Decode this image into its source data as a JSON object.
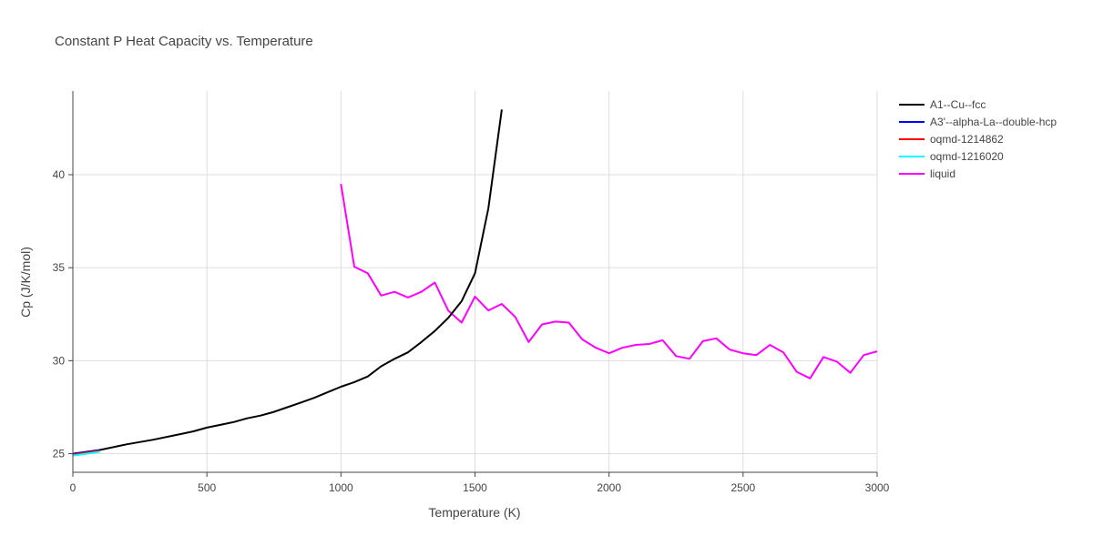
{
  "chart_data": {
    "type": "line",
    "title": "Constant P Heat Capacity vs. Temperature",
    "xlabel": "Temperature (K)",
    "ylabel": "Cp (J/K/mol)",
    "xlim": [
      0,
      3000
    ],
    "ylim": [
      24,
      44.5
    ],
    "xticks": [
      0,
      500,
      1000,
      1500,
      2000,
      2500,
      3000
    ],
    "yticks": [
      25,
      30,
      35,
      40
    ],
    "grid": true,
    "legend_position": "top-right",
    "series": [
      {
        "name": "A1--Cu--fcc",
        "color": "#000000",
        "x": [
          0,
          100,
          200,
          300,
          400,
          450,
          500,
          550,
          600,
          650,
          700,
          750,
          800,
          850,
          900,
          950,
          1000,
          1050,
          1100,
          1150,
          1200,
          1250,
          1300,
          1350,
          1400,
          1450,
          1500,
          1550,
          1600
        ],
        "y": [
          25.0,
          25.2,
          25.5,
          25.75,
          26.05,
          26.2,
          26.4,
          26.55,
          26.7,
          26.9,
          27.05,
          27.25,
          27.5,
          27.75,
          28.0,
          28.3,
          28.6,
          28.85,
          29.15,
          29.7,
          30.1,
          30.45,
          31.0,
          31.6,
          32.3,
          33.2,
          34.7,
          38.2,
          43.5
        ]
      },
      {
        "name": "A3'--alpha-La--double-hcp",
        "color": "#0000ff",
        "x": [
          0,
          50,
          100
        ],
        "y": [
          25.0,
          25.08,
          25.18
        ]
      },
      {
        "name": "oqmd-1214862",
        "color": "#ff0000",
        "x": [
          0,
          50,
          100
        ],
        "y": [
          24.95,
          25.05,
          25.15
        ]
      },
      {
        "name": "oqmd-1216020",
        "color": "#00ffff",
        "x": [
          0,
          50,
          100
        ],
        "y": [
          24.9,
          25.0,
          25.1
        ]
      },
      {
        "name": "liquid",
        "color": "#ff00ff",
        "x": [
          1000,
          1050,
          1100,
          1150,
          1200,
          1250,
          1300,
          1350,
          1400,
          1450,
          1500,
          1550,
          1600,
          1650,
          1700,
          1750,
          1800,
          1850,
          1900,
          1950,
          2000,
          2050,
          2100,
          2150,
          2200,
          2250,
          2300,
          2350,
          2400,
          2450,
          2500,
          2550,
          2600,
          2650,
          2700,
          2750,
          2800,
          2850,
          2900,
          2950,
          3000
        ],
        "y": [
          39.5,
          35.05,
          34.7,
          33.5,
          33.7,
          33.4,
          33.7,
          34.2,
          32.7,
          32.05,
          33.45,
          32.7,
          33.05,
          32.35,
          31.0,
          31.95,
          32.1,
          32.05,
          31.15,
          30.7,
          30.4,
          30.7,
          30.85,
          30.9,
          31.1,
          30.25,
          30.1,
          31.05,
          31.2,
          30.6,
          30.4,
          30.3,
          30.85,
          30.45,
          29.4,
          29.05,
          30.2,
          29.95,
          29.35,
          30.3,
          30.5
        ]
      }
    ]
  }
}
